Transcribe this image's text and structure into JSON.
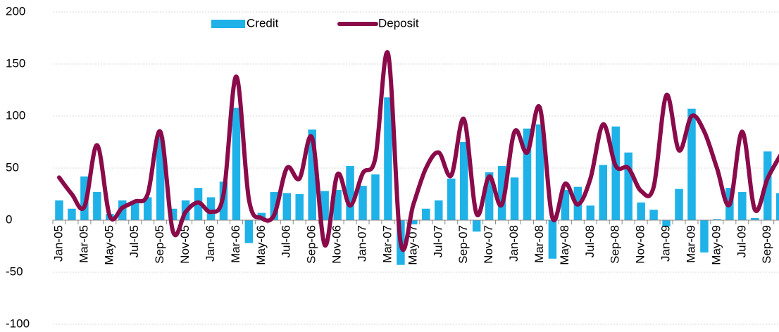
{
  "chart_data": {
    "type": "bar-line",
    "categories": [
      "Jan-05",
      null,
      "Mar-05",
      null,
      "May-05",
      null,
      "Jul-05",
      null,
      "Sep-05",
      null,
      "Nov-05",
      null,
      "Jan-06",
      null,
      "Mar-06",
      null,
      "May-06",
      null,
      "Jul-06",
      null,
      "Sep-06",
      null,
      "Nov-06",
      null,
      "Jan-07",
      null,
      "Mar-07",
      null,
      "May-07",
      null,
      "Jul-07",
      null,
      "Sep-07",
      null,
      "Nov-07",
      null,
      "Jan-08",
      null,
      "Mar-08",
      null,
      "May-08",
      null,
      "Jul-08",
      null,
      "Sep-08",
      null,
      "Nov-08",
      null,
      "Jan-09",
      null,
      "Mar-09",
      null,
      "May-09",
      null,
      "Jul-09",
      null,
      "Sep-09",
      null
    ],
    "series": [
      {
        "name": "Credit",
        "type": "bar",
        "color": "#1eb2e8",
        "values": [
          19,
          11,
          42,
          27,
          6,
          19,
          17,
          22,
          80,
          11,
          19,
          31,
          22,
          37,
          108,
          -22,
          7,
          27,
          26,
          25,
          87,
          28,
          29,
          52,
          33,
          44,
          118,
          -43,
          -4,
          11,
          19,
          40,
          75,
          -11,
          46,
          52,
          41,
          88,
          92,
          -37,
          29,
          32,
          14,
          53,
          90,
          65,
          17,
          10,
          -6,
          30,
          107,
          -31,
          1,
          31,
          27,
          2,
          66,
          26
        ]
      },
      {
        "name": "Deposit",
        "type": "line",
        "color": "#8a0a4a",
        "values": [
          41,
          25,
          13,
          72,
          4,
          12,
          18,
          25,
          85,
          -11,
          8,
          17,
          8,
          25,
          138,
          20,
          2,
          5,
          50,
          40,
          79,
          -24,
          44,
          14,
          45,
          60,
          160,
          -22,
          15,
          50,
          65,
          43,
          97,
          6,
          42,
          15,
          85,
          65,
          108,
          2,
          35,
          15,
          40,
          92,
          52,
          50,
          28,
          32,
          120,
          67,
          100,
          85,
          50,
          15,
          85,
          10,
          40,
          62
        ]
      }
    ],
    "ylim": [
      -100,
      200
    ],
    "yticks": [
      -100,
      -50,
      0,
      50,
      100,
      150,
      200
    ],
    "grid": true
  }
}
